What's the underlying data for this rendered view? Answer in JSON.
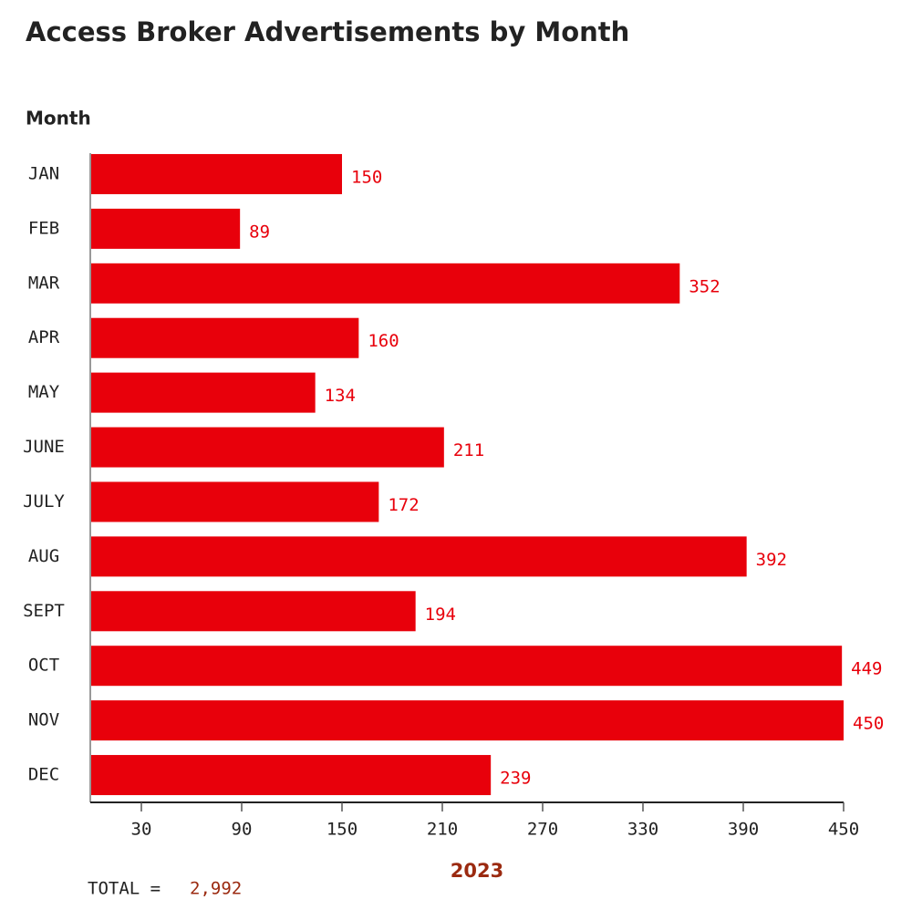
{
  "chart_data": {
    "type": "bar",
    "orientation": "horizontal",
    "title": "Access Broker Advertisements by Month",
    "y_label": "Month",
    "x_label": "2023",
    "categories": [
      "JAN",
      "FEB",
      "MAR",
      "APR",
      "MAY",
      "JUNE",
      "JULY",
      "AUG",
      "SEPT",
      "OCT",
      "NOV",
      "DEC"
    ],
    "values": [
      150,
      89,
      352,
      160,
      134,
      211,
      172,
      392,
      194,
      449,
      450,
      239
    ],
    "color": "#e8000b",
    "xlim": [
      0,
      450
    ],
    "xticks": [
      30,
      90,
      150,
      210,
      270,
      330,
      390,
      450
    ],
    "total_label": "TOTAL =",
    "total": "2,992"
  }
}
